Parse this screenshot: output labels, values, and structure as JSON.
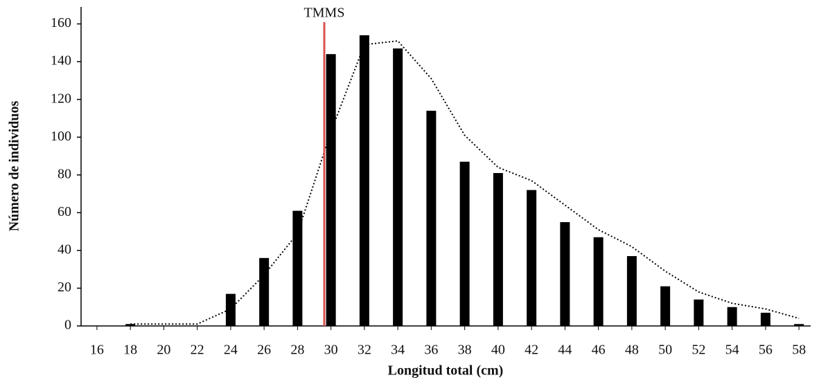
{
  "chart_data": {
    "type": "bar",
    "x_label": "Longitud total (cm)",
    "y_label": "Número de individuos",
    "x": [
      16,
      18,
      20,
      22,
      24,
      26,
      28,
      30,
      32,
      34,
      36,
      38,
      40,
      42,
      44,
      46,
      48,
      50,
      52,
      54,
      56,
      58
    ],
    "series": [
      {
        "type": "bar",
        "color": "#000000",
        "values": [
          0,
          1,
          0,
          0,
          17,
          36,
          61,
          144,
          154,
          147,
          114,
          87,
          81,
          72,
          55,
          47,
          37,
          21,
          14,
          10,
          7,
          1
        ]
      },
      {
        "type": "line",
        "style": "dotted",
        "color": "#000000",
        "values": [
          null,
          1,
          1,
          1,
          9,
          27,
          49,
          103,
          149,
          151,
          131,
          101,
          84,
          77,
          64,
          51,
          42,
          29,
          18,
          12,
          9,
          4
        ]
      }
    ],
    "xlim": [
      15.05,
      58.7
    ],
    "xticks": [
      16,
      18,
      20,
      22,
      24,
      26,
      28,
      30,
      32,
      34,
      36,
      38,
      40,
      42,
      44,
      46,
      48,
      50,
      52,
      54,
      56,
      58
    ],
    "ylim": [
      0,
      169
    ],
    "yticks": [
      0,
      20,
      40,
      60,
      80,
      100,
      120,
      140,
      160
    ],
    "reference_line": {
      "x": 29.6,
      "label": "TMMS",
      "color": "#d9534f"
    }
  }
}
